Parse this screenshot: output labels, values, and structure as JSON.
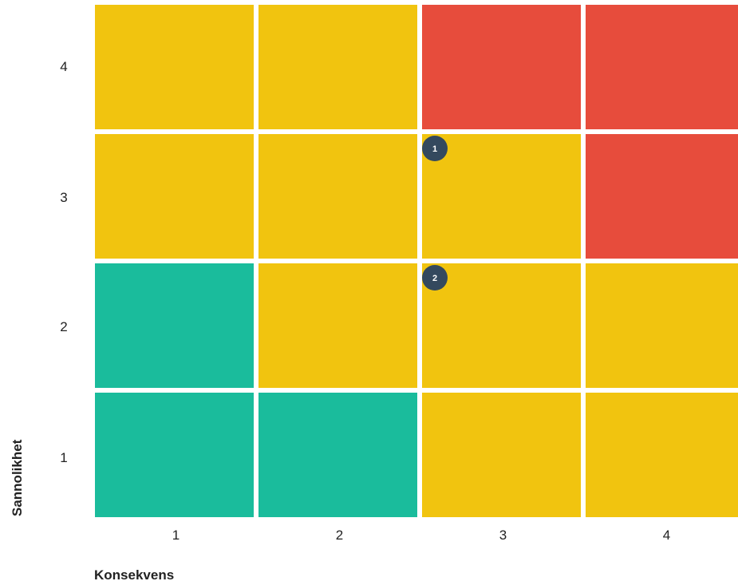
{
  "chart_data": {
    "type": "heatmap",
    "xlabel": "Konsekvens",
    "ylabel": "Sannolikhet",
    "x_ticks": [
      "1",
      "2",
      "3",
      "4"
    ],
    "y_ticks": [
      "1",
      "2",
      "3",
      "4"
    ],
    "grid": true,
    "colors": {
      "green": "#1ABC9C",
      "yellow": "#F1C40F",
      "red": "#E74C3C",
      "marker": "#34495E"
    },
    "cells": [
      {
        "konsekvens": 1,
        "sannolikhet": 4,
        "color": "yellow"
      },
      {
        "konsekvens": 2,
        "sannolikhet": 4,
        "color": "yellow"
      },
      {
        "konsekvens": 3,
        "sannolikhet": 4,
        "color": "red"
      },
      {
        "konsekvens": 4,
        "sannolikhet": 4,
        "color": "red"
      },
      {
        "konsekvens": 1,
        "sannolikhet": 3,
        "color": "yellow"
      },
      {
        "konsekvens": 2,
        "sannolikhet": 3,
        "color": "yellow"
      },
      {
        "konsekvens": 3,
        "sannolikhet": 3,
        "color": "yellow"
      },
      {
        "konsekvens": 4,
        "sannolikhet": 3,
        "color": "red"
      },
      {
        "konsekvens": 1,
        "sannolikhet": 2,
        "color": "green"
      },
      {
        "konsekvens": 2,
        "sannolikhet": 2,
        "color": "yellow"
      },
      {
        "konsekvens": 3,
        "sannolikhet": 2,
        "color": "yellow"
      },
      {
        "konsekvens": 4,
        "sannolikhet": 2,
        "color": "yellow"
      },
      {
        "konsekvens": 1,
        "sannolikhet": 1,
        "color": "green"
      },
      {
        "konsekvens": 2,
        "sannolikhet": 1,
        "color": "green"
      },
      {
        "konsekvens": 3,
        "sannolikhet": 1,
        "color": "yellow"
      },
      {
        "konsekvens": 4,
        "sannolikhet": 1,
        "color": "yellow"
      }
    ],
    "markers": [
      {
        "label": "1",
        "konsekvens": 3,
        "sannolikhet": 3
      },
      {
        "label": "2",
        "konsekvens": 3,
        "sannolikhet": 2
      }
    ]
  }
}
